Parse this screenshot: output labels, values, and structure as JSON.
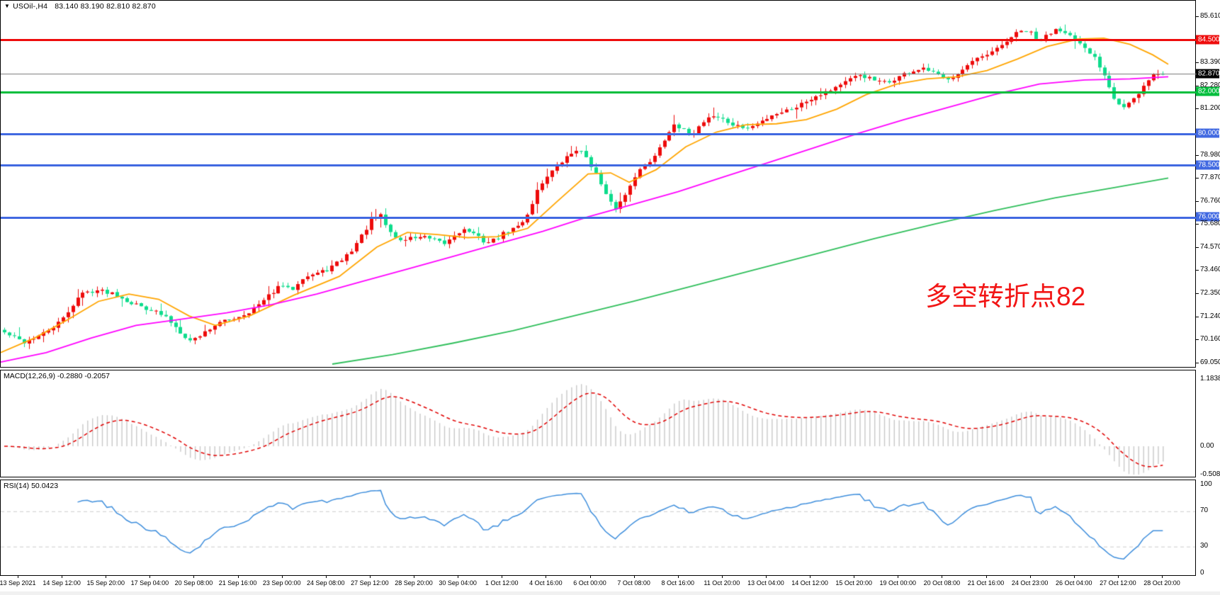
{
  "header": {
    "symbol": "USOil-,H4",
    "open": "83.140",
    "high": "83.190",
    "low": "82.810",
    "close": "82.870",
    "dropdown_icon": "symbol-marker-triangle"
  },
  "annotation": {
    "text": "多空转折点82",
    "color": "#F21515"
  },
  "macd_panel": {
    "label": "MACD(12,26,9) -0.2880 -0.2057"
  },
  "rsi_panel": {
    "label": "RSI(14) 50.0423"
  },
  "chart_data": {
    "type": "candlestick",
    "symbol": "USOil-",
    "timeframe": "H4",
    "title": "USOil-,H4",
    "ohlc_display": {
      "open": 83.14,
      "high": 83.19,
      "low": 82.81,
      "close": 82.87
    },
    "last_close": 82.87,
    "ylim": [
      69.05,
      85.61
    ],
    "up_color": "#ED0B0B",
    "down_color": "#0EDC8C",
    "candle_count": 238,
    "price_ticks": [
      {
        "label": "85.610",
        "value": 85.61
      },
      {
        "label": "83.390",
        "value": 83.39
      },
      {
        "label": "82.280",
        "value": 82.28
      },
      {
        "label": "81.200",
        "value": 81.2
      },
      {
        "label": "78.980",
        "value": 78.98
      },
      {
        "label": "77.870",
        "value": 77.87
      },
      {
        "label": "76.760",
        "value": 76.76
      },
      {
        "label": "75.680",
        "value": 75.68
      },
      {
        "label": "74.570",
        "value": 74.57
      },
      {
        "label": "73.460",
        "value": 73.46
      },
      {
        "label": "72.350",
        "value": 72.35
      },
      {
        "label": "71.240",
        "value": 71.24
      },
      {
        "label": "70.160",
        "value": 70.16
      },
      {
        "label": "69.050",
        "value": 69.05
      }
    ],
    "horizontal_lines": [
      {
        "label": "84.500",
        "price": 84.5,
        "color": "#EE0D0D",
        "thickness": 3,
        "kind": "resistance"
      },
      {
        "label": "82.870",
        "price": 82.87,
        "color": "#808080",
        "badge_bg": "#000000",
        "thickness": 1,
        "kind": "current-price"
      },
      {
        "label": "82.000",
        "price": 82.0,
        "color": "#00BE3C",
        "thickness": 3,
        "kind": "pivot"
      },
      {
        "label": "80.000",
        "price": 80.0,
        "color": "#4169E1",
        "thickness": 3,
        "kind": "support"
      },
      {
        "label": "78.500",
        "price": 78.5,
        "color": "#4169E1",
        "thickness": 3,
        "kind": "support"
      },
      {
        "label": "76.000",
        "price": 76.0,
        "color": "#4169E1",
        "thickness": 3,
        "kind": "support"
      }
    ],
    "close_anchors": [
      [
        5,
        70.5
      ],
      [
        32,
        70.05
      ],
      [
        58,
        70.4
      ],
      [
        85,
        71.05
      ],
      [
        112,
        72.35
      ],
      [
        133,
        72.55
      ],
      [
        159,
        72.4
      ],
      [
        186,
        71.9
      ],
      [
        213,
        71.6
      ],
      [
        234,
        71.2
      ],
      [
        255,
        70.5
      ],
      [
        268,
        70.1
      ],
      [
        282,
        70.4
      ],
      [
        303,
        70.9
      ],
      [
        324,
        71.15
      ],
      [
        345,
        71.4
      ],
      [
        367,
        71.9
      ],
      [
        388,
        72.6
      ],
      [
        399,
        72.75
      ],
      [
        409,
        72.5
      ],
      [
        425,
        73.15
      ],
      [
        441,
        73.3
      ],
      [
        457,
        73.45
      ],
      [
        478,
        73.9
      ],
      [
        494,
        74.4
      ],
      [
        510,
        75.2
      ],
      [
        523,
        75.9
      ],
      [
        537,
        76.1
      ],
      [
        547,
        75.4
      ],
      [
        563,
        74.9
      ],
      [
        579,
        75.05
      ],
      [
        595,
        75.1
      ],
      [
        611,
        74.9
      ],
      [
        627,
        74.75
      ],
      [
        643,
        75.3
      ],
      [
        657,
        75.45
      ],
      [
        672,
        75.1
      ],
      [
        686,
        74.8
      ],
      [
        699,
        75.0
      ],
      [
        714,
        75.35
      ],
      [
        731,
        75.6
      ],
      [
        744,
        76.2
      ],
      [
        757,
        77.3
      ],
      [
        770,
        78.0
      ],
      [
        783,
        78.4
      ],
      [
        797,
        78.85
      ],
      [
        813,
        79.3
      ],
      [
        827,
        78.9
      ],
      [
        840,
        78.1
      ],
      [
        853,
        77.1
      ],
      [
        866,
        76.4
      ],
      [
        880,
        77.0
      ],
      [
        893,
        77.95
      ],
      [
        905,
        78.4
      ],
      [
        919,
        78.8
      ],
      [
        933,
        79.6
      ],
      [
        948,
        80.4
      ],
      [
        962,
        80.2
      ],
      [
        976,
        80.0
      ],
      [
        988,
        80.5
      ],
      [
        1001,
        80.9
      ],
      [
        1015,
        80.8
      ],
      [
        1029,
        80.5
      ],
      [
        1041,
        80.35
      ],
      [
        1057,
        80.3
      ],
      [
        1073,
        80.6
      ],
      [
        1089,
        80.95
      ],
      [
        1105,
        81.1
      ],
      [
        1121,
        81.3
      ],
      [
        1137,
        81.6
      ],
      [
        1153,
        81.9
      ],
      [
        1169,
        82.1
      ],
      [
        1185,
        82.4
      ],
      [
        1199,
        82.6
      ],
      [
        1212,
        82.85
      ],
      [
        1224,
        82.7
      ],
      [
        1238,
        82.5
      ],
      [
        1252,
        82.45
      ],
      [
        1264,
        82.7
      ],
      [
        1277,
        82.9
      ],
      [
        1291,
        83.05
      ],
      [
        1305,
        83.1
      ],
      [
        1318,
        82.9
      ],
      [
        1331,
        82.65
      ],
      [
        1344,
        82.8
      ],
      [
        1358,
        83.1
      ],
      [
        1371,
        83.45
      ],
      [
        1384,
        83.65
      ],
      [
        1397,
        83.85
      ],
      [
        1411,
        84.2
      ],
      [
        1424,
        84.6
      ],
      [
        1437,
        84.9
      ],
      [
        1451,
        84.95
      ],
      [
        1464,
        84.4
      ],
      [
        1477,
        84.75
      ],
      [
        1490,
        85.1
      ],
      [
        1504,
        84.9
      ],
      [
        1518,
        84.4
      ],
      [
        1530,
        84.05
      ],
      [
        1543,
        83.7
      ],
      [
        1557,
        82.9
      ],
      [
        1571,
        81.8
      ],
      [
        1583,
        81.25
      ],
      [
        1596,
        81.6
      ],
      [
        1607,
        81.9
      ],
      [
        1618,
        82.6
      ],
      [
        1628,
        82.87
      ]
    ],
    "moving_averages": [
      {
        "name": "ma-fast",
        "color": "#FFA500",
        "points": [
          [
            0,
            69.55
          ],
          [
            48,
            70.25
          ],
          [
            96,
            71.15
          ],
          [
            138,
            72.0
          ],
          [
            181,
            72.35
          ],
          [
            223,
            72.1
          ],
          [
            266,
            71.3
          ],
          [
            303,
            70.85
          ],
          [
            351,
            71.3
          ],
          [
            414,
            72.3
          ],
          [
            478,
            73.2
          ],
          [
            531,
            74.6
          ],
          [
            574,
            75.3
          ],
          [
            616,
            75.2
          ],
          [
            659,
            75.05
          ],
          [
            701,
            75.1
          ],
          [
            744,
            75.5
          ],
          [
            786,
            76.8
          ],
          [
            829,
            78.1
          ],
          [
            861,
            78.15
          ],
          [
            887,
            77.7
          ],
          [
            925,
            78.3
          ],
          [
            967,
            79.4
          ],
          [
            1010,
            80.1
          ],
          [
            1052,
            80.45
          ],
          [
            1095,
            80.5
          ],
          [
            1137,
            80.7
          ],
          [
            1180,
            81.2
          ],
          [
            1222,
            81.9
          ],
          [
            1265,
            82.4
          ],
          [
            1307,
            82.65
          ],
          [
            1350,
            82.75
          ],
          [
            1392,
            83.05
          ],
          [
            1435,
            83.6
          ],
          [
            1477,
            84.2
          ],
          [
            1520,
            84.55
          ],
          [
            1557,
            84.6
          ],
          [
            1594,
            84.3
          ],
          [
            1626,
            83.8
          ],
          [
            1648,
            83.35
          ]
        ]
      },
      {
        "name": "ma-slow",
        "color": "#FF00FF",
        "points": [
          [
            0,
            69.1
          ],
          [
            64,
            69.55
          ],
          [
            128,
            70.25
          ],
          [
            191,
            70.85
          ],
          [
            255,
            71.15
          ],
          [
            319,
            71.45
          ],
          [
            383,
            71.85
          ],
          [
            446,
            72.35
          ],
          [
            510,
            72.95
          ],
          [
            574,
            73.55
          ],
          [
            638,
            74.15
          ],
          [
            701,
            74.75
          ],
          [
            765,
            75.35
          ],
          [
            829,
            76.05
          ],
          [
            893,
            76.65
          ],
          [
            956,
            77.25
          ],
          [
            1020,
            77.95
          ],
          [
            1084,
            78.65
          ],
          [
            1148,
            79.35
          ],
          [
            1211,
            80.05
          ],
          [
            1275,
            80.7
          ],
          [
            1339,
            81.3
          ],
          [
            1403,
            81.9
          ],
          [
            1466,
            82.4
          ],
          [
            1530,
            82.6
          ],
          [
            1594,
            82.65
          ],
          [
            1648,
            82.75
          ]
        ]
      },
      {
        "name": "ma-long",
        "color": "#2EBE5A",
        "points": [
          [
            468,
            69.0
          ],
          [
            553,
            69.45
          ],
          [
            638,
            70.0
          ],
          [
            723,
            70.6
          ],
          [
            808,
            71.3
          ],
          [
            893,
            72.0
          ],
          [
            978,
            72.75
          ],
          [
            1063,
            73.5
          ],
          [
            1148,
            74.25
          ],
          [
            1233,
            75.0
          ],
          [
            1318,
            75.7
          ],
          [
            1403,
            76.35
          ],
          [
            1488,
            76.95
          ],
          [
            1573,
            77.45
          ],
          [
            1648,
            77.9
          ]
        ]
      }
    ],
    "indicators": [
      {
        "name": "MACD",
        "params": "12,26,9",
        "main_value": -0.288,
        "signal_value": -0.2057,
        "axis_labels": [
          {
            "label": "1.1838",
            "value": 1.1838
          },
          {
            "label": "0.00",
            "value": 0
          },
          {
            "label": "-0.5082",
            "value": -0.5082
          }
        ],
        "bar_color": "#C8C8C8",
        "signal_color": "#E00000"
      },
      {
        "name": "RSI",
        "params": "14",
        "value": 50.0423,
        "axis_labels": [
          {
            "label": "100",
            "value": 100
          },
          {
            "label": "70",
            "value": 70
          },
          {
            "label": "30",
            "value": 30
          },
          {
            "label": "0",
            "value": 0
          }
        ],
        "levels": [
          70,
          30
        ],
        "line_color": "#3E8EDC",
        "level_color": "#CCCCCC"
      }
    ],
    "x_labels": [
      "13 Sep 2021",
      "14 Sep 12:00",
      "15 Sep 20:00",
      "17 Sep 04:00",
      "20 Sep 08:00",
      "21 Sep 16:00",
      "23 Sep 00:00",
      "24 Sep 08:00",
      "27 Sep 12:00",
      "28 Sep 20:00",
      "30 Sep 04:00",
      "1 Oct 12:00",
      "4 Oct 16:00",
      "6 Oct 00:00",
      "7 Oct 08:00",
      "8 Oct 16:00",
      "11 Oct 20:00",
      "13 Oct 04:00",
      "14 Oct 12:00",
      "15 Oct 20:00",
      "19 Oct 00:00",
      "20 Oct 08:00",
      "21 Oct 16:00",
      "24 Oct 23:00",
      "26 Oct 04:00",
      "27 Oct 12:00",
      "28 Oct 20:00"
    ]
  }
}
